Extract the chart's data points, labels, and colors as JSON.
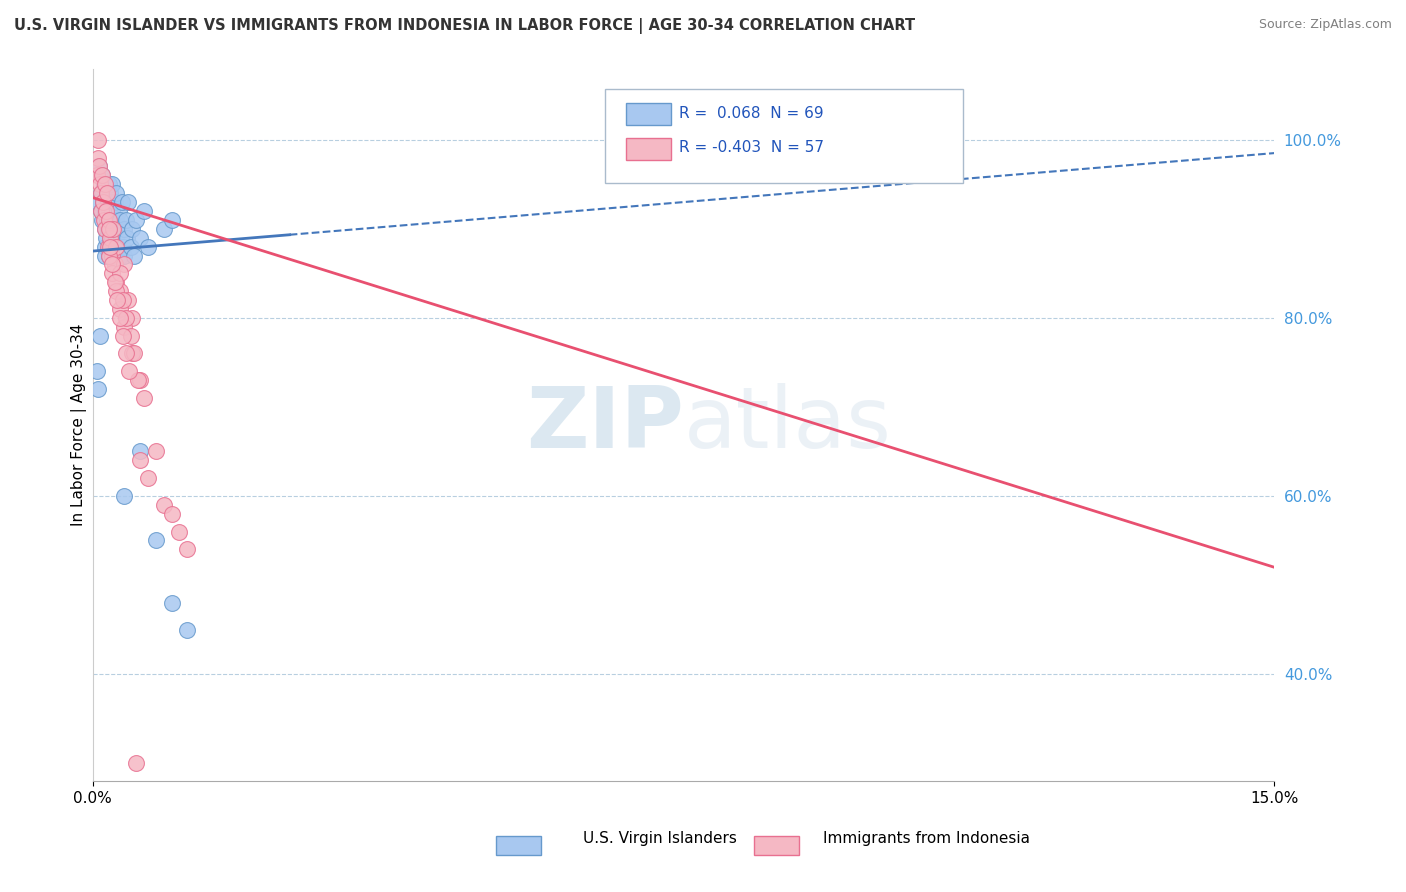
{
  "title": "U.S. VIRGIN ISLANDER VS IMMIGRANTS FROM INDONESIA IN LABOR FORCE | AGE 30-34 CORRELATION CHART",
  "source": "Source: ZipAtlas.com",
  "xlabel_blue": "U.S. Virgin Islanders",
  "xlabel_pink": "Immigrants from Indonesia",
  "ylabel": "In Labor Force | Age 30-34",
  "xmin": 0.0,
  "xmax": 0.15,
  "ymin": 0.28,
  "ymax": 1.08,
  "ytick_values": [
    0.4,
    0.6,
    0.8,
    1.0
  ],
  "xtick_values": [
    0.0,
    0.15
  ],
  "legend_R_blue": "R =  0.068",
  "legend_N_blue": "N = 69",
  "legend_R_pink": "R = -0.403",
  "legend_N_pink": "N = 57",
  "blue_color": "#a8c8f0",
  "blue_edge": "#6699cc",
  "pink_color": "#f5b8c4",
  "pink_edge": "#e87090",
  "blue_line_color": "#4477bb",
  "pink_line_color": "#e85070",
  "watermark_zip": "ZIP",
  "watermark_atlas": "atlas",
  "blue_scatter_x": [
    0.0005,
    0.0008,
    0.001,
    0.001,
    0.0012,
    0.0012,
    0.0013,
    0.0014,
    0.0015,
    0.0015,
    0.0016,
    0.0016,
    0.0017,
    0.0018,
    0.0018,
    0.0019,
    0.0019,
    0.002,
    0.002,
    0.002,
    0.0021,
    0.0021,
    0.0022,
    0.0022,
    0.0022,
    0.0023,
    0.0023,
    0.0024,
    0.0024,
    0.0025,
    0.0025,
    0.0025,
    0.0026,
    0.0027,
    0.0028,
    0.0028,
    0.0029,
    0.003,
    0.003,
    0.0031,
    0.0032,
    0.0033,
    0.0034,
    0.0035,
    0.0036,
    0.0037,
    0.0038,
    0.0039,
    0.004,
    0.0042,
    0.0043,
    0.0045,
    0.0048,
    0.005,
    0.0052,
    0.0055,
    0.006,
    0.0065,
    0.007,
    0.009,
    0.01,
    0.004,
    0.006,
    0.008,
    0.01,
    0.012,
    0.0005,
    0.0007,
    0.0009
  ],
  "blue_scatter_y": [
    0.93,
    0.97,
    0.92,
    0.94,
    0.91,
    0.96,
    0.93,
    0.95,
    0.88,
    0.9,
    0.87,
    0.92,
    0.89,
    0.94,
    0.91,
    0.9,
    0.93,
    0.88,
    0.91,
    0.95,
    0.87,
    0.92,
    0.89,
    0.94,
    0.9,
    0.88,
    0.93,
    0.91,
    0.87,
    0.92,
    0.89,
    0.95,
    0.88,
    0.9,
    0.93,
    0.87,
    0.91,
    0.89,
    0.94,
    0.9,
    0.88,
    0.92,
    0.87,
    0.91,
    0.89,
    0.93,
    0.88,
    0.9,
    0.87,
    0.91,
    0.89,
    0.93,
    0.88,
    0.9,
    0.87,
    0.91,
    0.89,
    0.92,
    0.88,
    0.9,
    0.91,
    0.6,
    0.65,
    0.55,
    0.48,
    0.45,
    0.74,
    0.72,
    0.78
  ],
  "pink_scatter_x": [
    0.0005,
    0.0006,
    0.0007,
    0.0008,
    0.0009,
    0.001,
    0.0011,
    0.0012,
    0.0013,
    0.0014,
    0.0015,
    0.0016,
    0.0017,
    0.0018,
    0.0019,
    0.002,
    0.0022,
    0.0024,
    0.0026,
    0.0028,
    0.003,
    0.003,
    0.0035,
    0.004,
    0.0045,
    0.005,
    0.002,
    0.0025,
    0.003,
    0.0035,
    0.004,
    0.006,
    0.007,
    0.008,
    0.009,
    0.01,
    0.011,
    0.012,
    0.005,
    0.006,
    0.0065,
    0.0035,
    0.0038,
    0.0042,
    0.0048,
    0.0052,
    0.0058,
    0.002,
    0.0022,
    0.0025,
    0.0028,
    0.0031,
    0.0034,
    0.0038,
    0.0042,
    0.0046,
    0.0055
  ],
  "pink_scatter_y": [
    0.96,
    0.98,
    1.0,
    0.97,
    0.95,
    0.94,
    0.92,
    0.96,
    0.93,
    0.91,
    0.95,
    0.9,
    0.92,
    0.94,
    0.88,
    0.91,
    0.89,
    0.87,
    0.9,
    0.86,
    0.84,
    0.88,
    0.83,
    0.86,
    0.82,
    0.8,
    0.87,
    0.85,
    0.83,
    0.81,
    0.79,
    0.64,
    0.62,
    0.65,
    0.59,
    0.58,
    0.56,
    0.54,
    0.76,
    0.73,
    0.71,
    0.85,
    0.82,
    0.8,
    0.78,
    0.76,
    0.73,
    0.9,
    0.88,
    0.86,
    0.84,
    0.82,
    0.8,
    0.78,
    0.76,
    0.74,
    0.3
  ],
  "blue_trend_x": [
    0.0,
    0.15
  ],
  "blue_trend_y": [
    0.875,
    0.985
  ],
  "pink_trend_x": [
    0.0,
    0.15
  ],
  "pink_trend_y": [
    0.935,
    0.52
  ]
}
